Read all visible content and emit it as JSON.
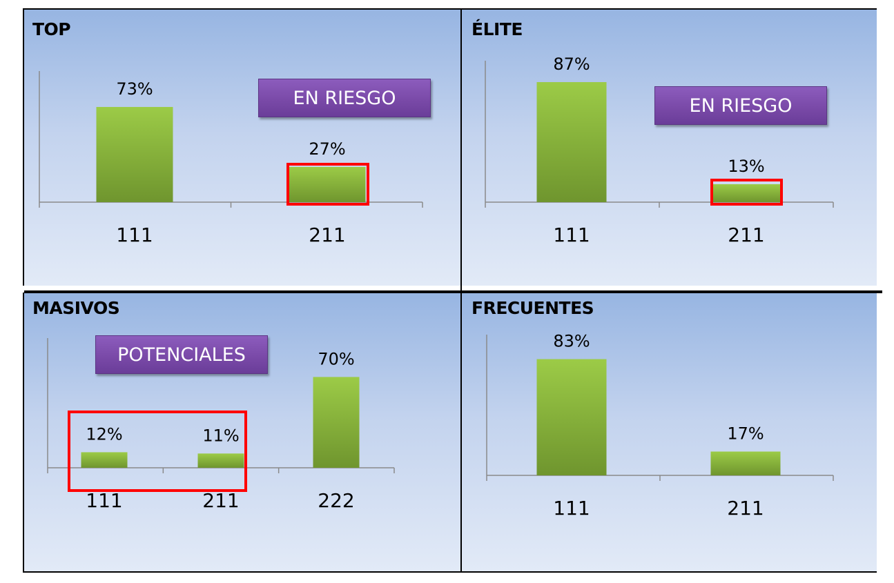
{
  "colors": {
    "bar": "#8bbf3c",
    "badge": "#7b4ba9",
    "highlight": "#ff0000",
    "panel": "#b7cbec"
  },
  "chart_data": [
    {
      "type": "bar",
      "title": "TOP",
      "categories": [
        "111",
        "211"
      ],
      "values": [
        73,
        27
      ],
      "labels": [
        "73%",
        "27%"
      ],
      "badge": "EN RIESGO",
      "highlighted": [
        "211"
      ]
    },
    {
      "type": "bar",
      "title": "ÉLITE",
      "categories": [
        "111",
        "211"
      ],
      "values": [
        87,
        13
      ],
      "labels": [
        "87%",
        "13%"
      ],
      "badge": "EN RIESGO",
      "highlighted": [
        "211"
      ]
    },
    {
      "type": "bar",
      "title": "MASIVOS",
      "categories": [
        "111",
        "211",
        "222"
      ],
      "values": [
        12,
        11,
        70
      ],
      "labels": [
        "12%",
        "11%",
        "70%"
      ],
      "badge": "POTENCIALES",
      "highlighted": [
        "111",
        "211"
      ]
    },
    {
      "type": "bar",
      "title": "FRECUENTES",
      "categories": [
        "111",
        "211"
      ],
      "values": [
        83,
        17
      ],
      "labels": [
        "83%",
        "17%"
      ],
      "badge": "",
      "highlighted": []
    }
  ]
}
